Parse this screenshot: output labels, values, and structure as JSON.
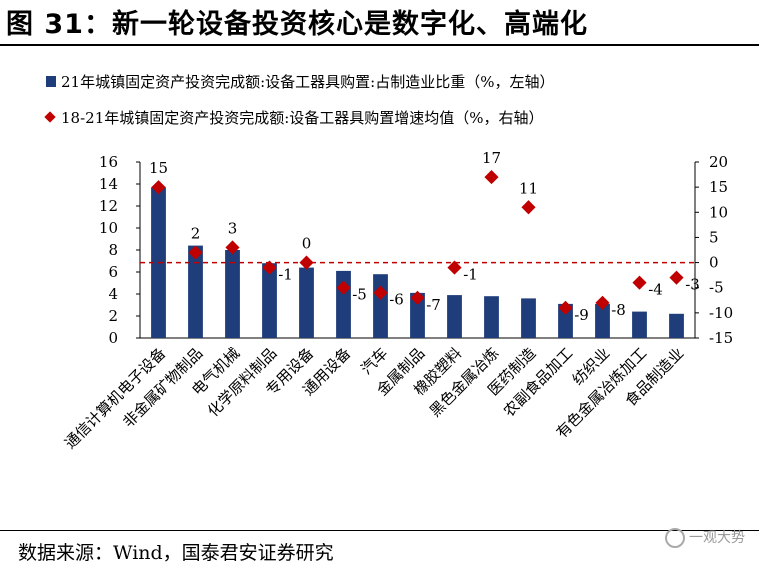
{
  "title": "图 31：新一轮设备投资核心是数字化、高端化",
  "source": "数据来源：Wind，国泰君安证券研究",
  "watermark": "一观大势",
  "chart_data": {
    "type": "bar",
    "categories": [
      "通信计算机电子设备",
      "非金属矿物制品",
      "电气机械",
      "化学原料制品",
      "专用设备",
      "通用设备",
      "汽车",
      "金属制品",
      "橡胶塑料",
      "黑色金属冶炼",
      "医药制造",
      "农副食品加工",
      "纺织业",
      "有色金属冶炼加工",
      "食品制造业"
    ],
    "series": [
      {
        "name": "21年城镇固定资产投资完成额:设备工器具购置:占制造业比重（%，左轴）",
        "type": "bar",
        "axis": "left",
        "color": "#1f3d7a",
        "values": [
          13.7,
          8.4,
          8.0,
          6.8,
          6.4,
          6.1,
          5.8,
          4.1,
          3.9,
          3.8,
          3.6,
          3.1,
          3.1,
          2.4,
          2.2
        ]
      },
      {
        "name": "18-21年城镇固定资产投资完成额:设备工器具购置增速均值（%，右轴）",
        "type": "scatter",
        "axis": "right",
        "color": "#c00000",
        "values": [
          15,
          2,
          3,
          -1,
          0,
          -5,
          -6,
          -7,
          -1,
          17,
          11,
          -9,
          -8,
          -4,
          -3
        ]
      }
    ],
    "data_labels": [
      "15",
      "2",
      "3",
      "-1",
      "0",
      "-5",
      "-6",
      "-7",
      "-1",
      "17",
      "11",
      "-9",
      "-8",
      "-4",
      "-3"
    ],
    "y_left": {
      "lim": [
        0,
        16
      ],
      "ticks": [
        "0",
        "2",
        "4",
        "6",
        "8",
        "10",
        "12",
        "14",
        "16"
      ]
    },
    "y_right": {
      "lim": [
        -15,
        20
      ],
      "ticks": [
        "-15",
        "-10",
        "-5",
        "0",
        "5",
        "10",
        "15",
        "20"
      ]
    },
    "reference_line": {
      "axis": "right",
      "value": 0,
      "style": "dashed",
      "color": "#c00000"
    },
    "legend_position": "top-left",
    "grid": false
  }
}
